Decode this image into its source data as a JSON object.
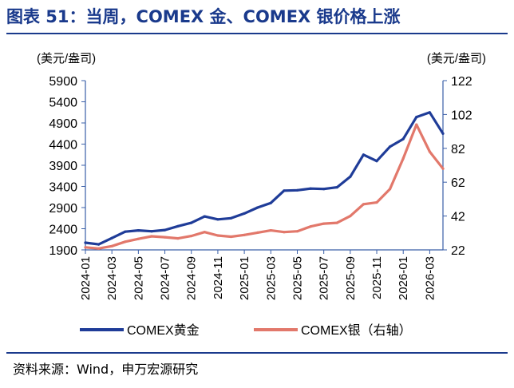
{
  "figure": {
    "title": "图表 51：当周，COMEX 金、COMEX 银价格上涨",
    "source": "资料来源：Wind，申万宏源研究"
  },
  "chart_data": {
    "type": "line",
    "left_axis_unit": "(美元/盎司)",
    "right_axis_unit": "(美元/盎司)",
    "left_axis": {
      "ylim": [
        1900,
        5900
      ],
      "ticks": [
        "1900",
        "2400",
        "2900",
        "3400",
        "3900",
        "4400",
        "4900",
        "5400",
        "5900"
      ]
    },
    "right_axis": {
      "ylim": [
        22,
        122
      ],
      "ticks": [
        "22",
        "42",
        "62",
        "82",
        "102",
        "122"
      ]
    },
    "x_ticks": [
      "2024-01",
      "2024-03",
      "2024-05",
      "2024-07",
      "2024-09",
      "2024-11",
      "2025-01",
      "2025-03",
      "2025-05",
      "2025-07",
      "2025-09",
      "2025-11",
      "2026-01",
      "2026-03"
    ],
    "x": [
      "2024-01",
      "2024-02",
      "2024-03",
      "2024-04",
      "2024-05",
      "2024-06",
      "2024-07",
      "2024-08",
      "2024-09",
      "2024-10",
      "2024-11",
      "2024-12",
      "2025-01",
      "2025-02",
      "2025-03",
      "2025-04",
      "2025-05",
      "2025-06",
      "2025-07",
      "2025-08",
      "2025-09",
      "2025-10",
      "2025-11",
      "2025-12",
      "2026-01",
      "2026-02",
      "2026-03",
      "2026-04"
    ],
    "series": [
      {
        "name": "COMEX黄金",
        "axis": "left",
        "color": "#1f3c98",
        "values": [
          2070,
          2030,
          2180,
          2330,
          2360,
          2340,
          2370,
          2460,
          2540,
          2690,
          2620,
          2650,
          2760,
          2900,
          3010,
          3300,
          3310,
          3350,
          3340,
          3380,
          3630,
          4150,
          4000,
          4340,
          4520,
          5040,
          5150,
          4650
        ]
      },
      {
        "name": "COMEX银（右轴）",
        "axis": "right",
        "color": "#e2786b",
        "values": [
          23.5,
          22.8,
          24.2,
          26.8,
          28.5,
          30.0,
          29.5,
          28.8,
          30.2,
          32.5,
          30.5,
          29.8,
          30.8,
          32.2,
          33.5,
          32.5,
          33.0,
          35.8,
          37.5,
          38.0,
          42.0,
          49.0,
          50.0,
          58.0,
          76.0,
          96.0,
          80.0,
          70.0
        ]
      }
    ],
    "legend_position": "bottom",
    "grid": false
  }
}
